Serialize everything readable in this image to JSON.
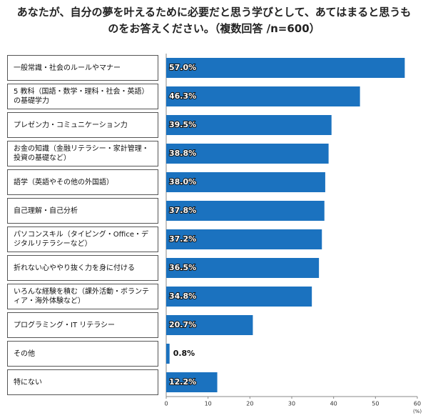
{
  "chart_data": {
    "type": "bar",
    "orientation": "horizontal",
    "title": "あなたが、自分の夢を叶えるために必要だと思う学びとして、あてはまると思うものをお答えください。（複数回答 /n=600）",
    "categories": [
      "一般常識・社会のルールやマナー",
      "5 教科（国語・数学・理科・社会・英語）の基礎学力",
      "プレゼン力・コミュニケーション力",
      "お金の知識（金融リテラシー・家計管理・投資の基礎など）",
      "語学（英語やその他の外国語）",
      "自己理解・自己分析",
      "パソコンスキル（タイピング・Office・デジタルリテラシーなど）",
      "折れない心ややり抜く力を身に付ける",
      "いろんな経験を積む（課外活動・ボランティア・海外体験など）",
      "プログラミング・IT リテラシー",
      "その他",
      "特にない"
    ],
    "values": [
      57.0,
      46.3,
      39.5,
      38.8,
      38.0,
      37.8,
      37.2,
      36.5,
      34.8,
      20.7,
      0.8,
      12.2
    ],
    "value_labels": [
      "57.0%",
      "46.3%",
      "39.5%",
      "38.8%",
      "38.0%",
      "37.8%",
      "37.2%",
      "36.5%",
      "34.8%",
      "20.7%",
      "0.8%",
      "12.2%"
    ],
    "color": "#1b72bf",
    "xlim": [
      0,
      60
    ],
    "xticks": [
      0,
      10,
      20,
      30,
      40,
      50,
      60
    ],
    "xunit": "(%)"
  }
}
